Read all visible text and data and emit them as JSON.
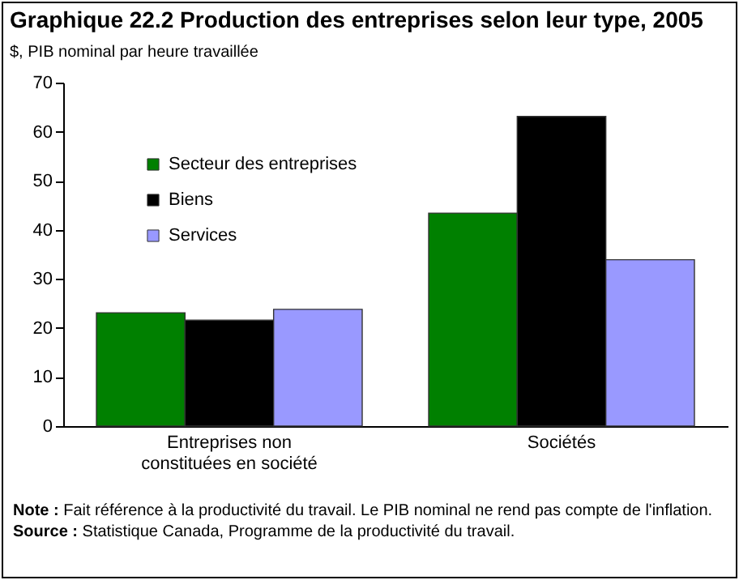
{
  "chart_data": {
    "type": "bar",
    "title": "Graphique 22.2 Production des entreprises selon leur type, 2005",
    "subtitle": "$, PIB nominal par heure travaillée",
    "categories": [
      "Entreprises non constituées en société",
      "Sociétés"
    ],
    "series": [
      {
        "name": "Secteur des entreprises",
        "color": "#008000",
        "values": [
          23.1,
          43.4
        ]
      },
      {
        "name": "Biens",
        "color": "#000000",
        "values": [
          21.6,
          63.1
        ]
      },
      {
        "name": "Services",
        "color": "#9999ff",
        "values": [
          23.8,
          33.9
        ]
      }
    ],
    "ylim": [
      0,
      70
    ],
    "yticks": [
      0,
      10,
      20,
      30,
      40,
      50,
      60,
      70
    ],
    "grid": false,
    "legend": "top left",
    "annotations": [
      "Note : Fait référence à la productivité du travail. Le PIB nominal ne rend pas compte de l'inflation.",
      "Source : Statistique Canada, Programme de la productivité du travail."
    ]
  }
}
